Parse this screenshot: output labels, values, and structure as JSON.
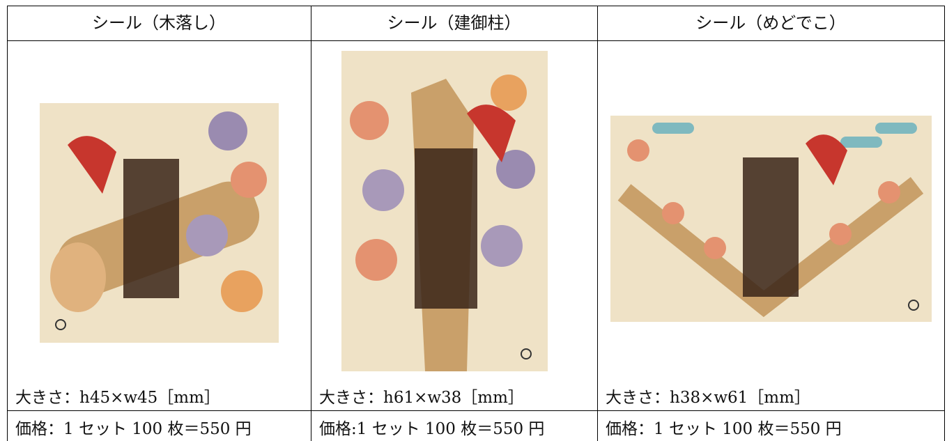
{
  "table": {
    "headers": [
      "シール（木落し）",
      "シール（建御柱）",
      "シール（めどでこ）"
    ],
    "sizes": [
      "大きさ：h45×w45［mm］",
      "大きさ：h61×w38［mm］",
      "大きさ：h38×w61［mm］"
    ],
    "prices": [
      "価格：1 セット 100 枚＝550 円",
      "価格:1 セット 100 枚＝550 円",
      "価格：1 セット 100 枚＝550 円"
    ]
  }
}
